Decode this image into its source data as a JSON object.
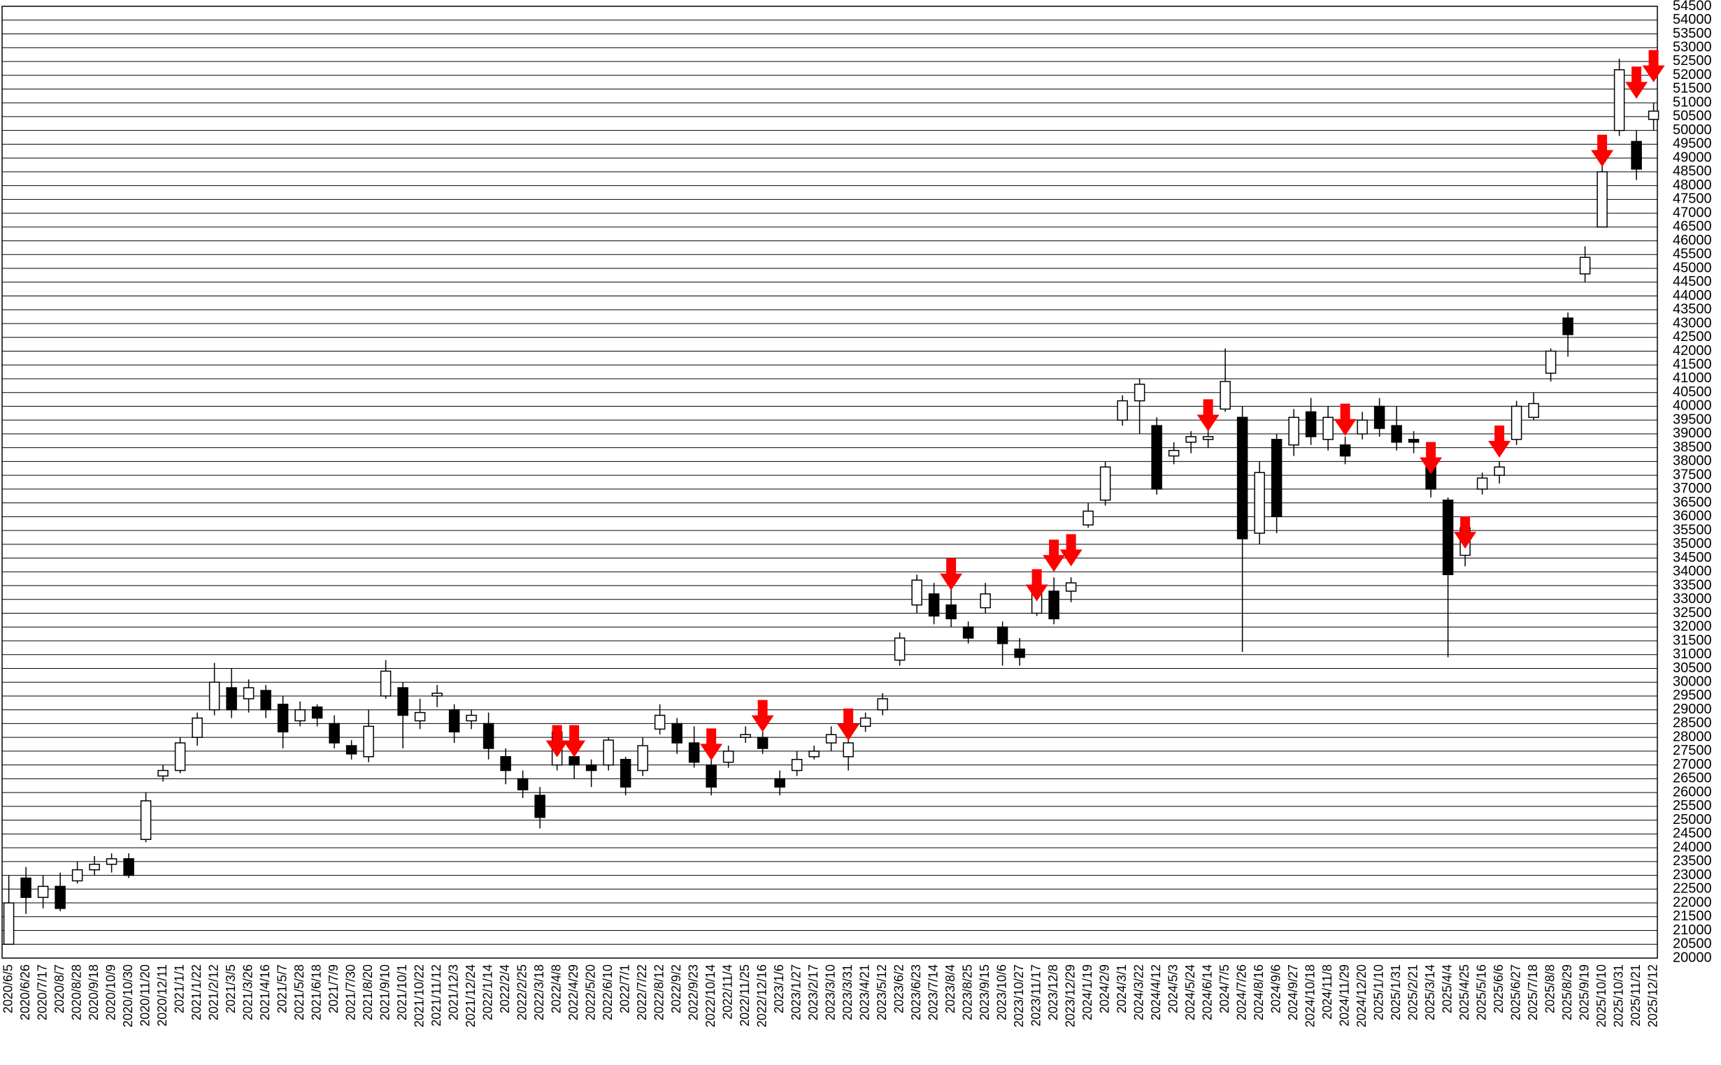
{
  "chart_data": {
    "type": "candlestick",
    "categories": [
      "2020/6/5",
      "2020/6/26",
      "2020/7/17",
      "2020/8/7",
      "2020/8/28",
      "2020/9/18",
      "2020/10/9",
      "2020/10/30",
      "2020/11/20",
      "2020/12/11",
      "2021/1/1",
      "2021/1/22",
      "2021/2/12",
      "2021/3/5",
      "2021/3/26",
      "2021/4/16",
      "2021/5/7",
      "2021/5/28",
      "2021/6/18",
      "2021/7/9",
      "2021/7/30",
      "2021/8/20",
      "2021/9/10",
      "2021/10/1",
      "2021/10/22",
      "2021/11/12",
      "2021/12/3",
      "2021/12/24",
      "2022/1/14",
      "2022/2/4",
      "2022/2/25",
      "2022/3/18",
      "2022/4/8",
      "2022/4/29",
      "2022/5/20",
      "2022/6/10",
      "2022/7/1",
      "2022/7/22",
      "2022/8/12",
      "2022/9/2",
      "2022/9/23",
      "2022/10/14",
      "2022/11/4",
      "2022/11/25",
      "2022/12/16",
      "2023/1/6",
      "2023/1/27",
      "2023/2/17",
      "2023/3/10",
      "2023/3/31",
      "2023/4/21",
      "2023/5/12",
      "2023/6/2",
      "2023/6/23",
      "2023/7/14",
      "2023/8/4",
      "2023/8/25",
      "2023/9/15",
      "2023/10/6",
      "2023/10/27",
      "2023/11/17",
      "2023/12/8",
      "2023/12/29",
      "2024/1/19",
      "2024/2/9",
      "2024/3/1",
      "2024/3/22",
      "2024/4/12",
      "2024/5/3",
      "2024/5/24",
      "2024/6/14",
      "2024/7/5",
      "2024/7/26",
      "2024/8/16",
      "2024/9/6",
      "2024/9/27",
      "2024/10/18",
      "2024/11/8",
      "2024/11/29",
      "2024/12/20",
      "2025/1/10",
      "2025/1/31",
      "2025/2/21",
      "2025/3/14",
      "2025/4/4",
      "2025/4/25",
      "2025/5/16",
      "2025/6/6",
      "2025/6/27",
      "2025/7/18",
      "2025/8/8",
      "2025/8/29",
      "2025/9/19",
      "2025/10/10",
      "2025/10/31",
      "2025/11/21",
      "2025/12/12"
    ],
    "open": [
      20500,
      22900,
      22200,
      22600,
      22800,
      23200,
      23400,
      23600,
      24300,
      26600,
      26800,
      28000,
      29000,
      29800,
      29400,
      29700,
      29200,
      28600,
      29100,
      28500,
      27700,
      27300,
      29500,
      29800,
      28600,
      29500,
      29000,
      28600,
      28500,
      27300,
      26500,
      25900,
      27000,
      27300,
      27000,
      27000,
      27200,
      26800,
      28300,
      28500,
      27800,
      27000,
      27100,
      28000,
      28000,
      26500,
      26800,
      27300,
      27800,
      27300,
      28400,
      29000,
      30800,
      32800,
      33200,
      32800,
      32000,
      32700,
      32000,
      31200,
      32500,
      33300,
      33300,
      35700,
      36600,
      39500,
      40200,
      39300,
      38200,
      38700,
      38800,
      39900,
      39600,
      35400,
      38800,
      38600,
      39800,
      38800,
      38600,
      39000,
      40000,
      39300,
      38800,
      37800,
      36600,
      34600,
      37000,
      37500,
      38800,
      39600,
      41200,
      43200,
      44800,
      46500,
      50000,
      49600,
      50400
    ],
    "high": [
      23000,
      23300,
      23000,
      23100,
      23500,
      23700,
      23800,
      23800,
      26000,
      27000,
      28000,
      28900,
      30700,
      30500,
      30100,
      29900,
      29500,
      29300,
      29200,
      28800,
      27900,
      29000,
      30800,
      30000,
      29400,
      29900,
      29200,
      29000,
      28900,
      27600,
      26800,
      26200,
      28300,
      28000,
      27200,
      28000,
      27300,
      28000,
      29200,
      28700,
      28400,
      27300,
      27700,
      28400,
      28200,
      26800,
      27500,
      27700,
      28400,
      28000,
      28900,
      29600,
      31800,
      33900,
      33600,
      33500,
      32200,
      33600,
      32200,
      31600,
      33600,
      33800,
      33800,
      36500,
      38000,
      40400,
      41000,
      39600,
      38700,
      39100,
      39400,
      42100,
      40000,
      38000,
      39000,
      39900,
      40300,
      40000,
      38900,
      39800,
      40300,
      40000,
      39100,
      38200,
      36700,
      35800,
      37600,
      38000,
      40200,
      40500,
      42100,
      43400,
      45800,
      48700,
      52600,
      50000,
      51000
    ],
    "low": [
      20500,
      21600,
      21800,
      21700,
      22700,
      23000,
      23100,
      22900,
      24200,
      26400,
      26700,
      27700,
      28800,
      28700,
      28900,
      28700,
      27600,
      28400,
      28400,
      27600,
      27200,
      27100,
      29400,
      27600,
      28300,
      29100,
      27800,
      28300,
      27200,
      26300,
      25800,
      24700,
      26800,
      26500,
      26200,
      26800,
      25900,
      26600,
      28100,
      27400,
      26900,
      25900,
      26900,
      27800,
      27400,
      25900,
      26600,
      27200,
      27500,
      26800,
      28200,
      28800,
      30600,
      32500,
      32100,
      32000,
      31400,
      32500,
      30600,
      30600,
      32400,
      32100,
      32900,
      35600,
      36400,
      39300,
      39000,
      36800,
      37900,
      38300,
      38500,
      39800,
      31100,
      35000,
      35400,
      38200,
      38600,
      38400,
      37900,
      38800,
      38900,
      38400,
      38300,
      36700,
      30900,
      34200,
      36800,
      37200,
      38600,
      39500,
      40900,
      41800,
      44500,
      46500,
      49800,
      48200,
      50000
    ],
    "close": [
      22000,
      22200,
      22600,
      21800,
      23200,
      23400,
      23600,
      23000,
      25700,
      26800,
      27800,
      28700,
      30000,
      29000,
      29800,
      29000,
      28200,
      29000,
      28700,
      27800,
      27400,
      28400,
      30400,
      28800,
      28900,
      29600,
      28200,
      28800,
      27600,
      26800,
      26100,
      25100,
      28200,
      27000,
      26800,
      27900,
      26200,
      27700,
      28800,
      27800,
      27100,
      26200,
      27500,
      28100,
      27600,
      26200,
      27200,
      27500,
      28100,
      27800,
      28700,
      29400,
      31600,
      33700,
      32400,
      32300,
      31600,
      33200,
      31400,
      30900,
      33300,
      32300,
      33600,
      36200,
      37800,
      40200,
      40800,
      37000,
      38400,
      38900,
      38900,
      40900,
      35200,
      37600,
      36000,
      39600,
      38900,
      39600,
      38200,
      39500,
      39200,
      38700,
      38700,
      37000,
      33900,
      35600,
      37400,
      37800,
      40000,
      40100,
      42000,
      42600,
      45400,
      48500,
      52200,
      48600,
      50700
    ],
    "up_color": "#ffffff",
    "down_color": "#000000",
    "markers": [
      {
        "x": "2022/4/8",
        "y": 27280
      },
      {
        "x": "2022/4/29",
        "y": 27280
      },
      {
        "x": "2022/10/14",
        "y": 27160
      },
      {
        "x": "2022/12/16",
        "y": 28190
      },
      {
        "x": "2023/3/31",
        "y": 27880
      },
      {
        "x": "2023/8/4",
        "y": 33330
      },
      {
        "x": "2023/11/17",
        "y": 32930
      },
      {
        "x": "2023/12/8",
        "y": 34000
      },
      {
        "x": "2023/12/29",
        "y": 34200
      },
      {
        "x": "2024/6/14",
        "y": 39090
      },
      {
        "x": "2024/11/29",
        "y": 38930
      },
      {
        "x": "2025/3/14",
        "y": 37540
      },
      {
        "x": "2025/4/25",
        "y": 34840
      },
      {
        "x": "2025/6/6",
        "y": 38140
      },
      {
        "x": "2025/10/10",
        "y": 48680
      },
      {
        "x": "2025/11/21",
        "y": 51150
      },
      {
        "x": "2025/12/12",
        "y": 51750
      }
    ],
    "marker_color": "#ff0000",
    "ylim": [
      20000,
      54500
    ],
    "yticks": [
      20000,
      20500,
      21000,
      21500,
      22000,
      22500,
      23000,
      23500,
      24000,
      24500,
      25000,
      25500,
      26000,
      26500,
      27000,
      27500,
      28000,
      28500,
      29000,
      29500,
      30000,
      30500,
      31000,
      31500,
      32000,
      32500,
      33000,
      33500,
      34000,
      34500,
      35000,
      35500,
      36000,
      36500,
      37000,
      37500,
      38000,
      38500,
      39000,
      39500,
      40000,
      40500,
      41000,
      41500,
      42000,
      42500,
      43000,
      43500,
      44000,
      44500,
      45000,
      45500,
      46000,
      46500,
      47000,
      47500,
      48000,
      48500,
      49000,
      49500,
      50000,
      50500,
      51000,
      51500,
      52000,
      52500,
      53000,
      53500,
      54000,
      54500
    ],
    "grid": true
  }
}
